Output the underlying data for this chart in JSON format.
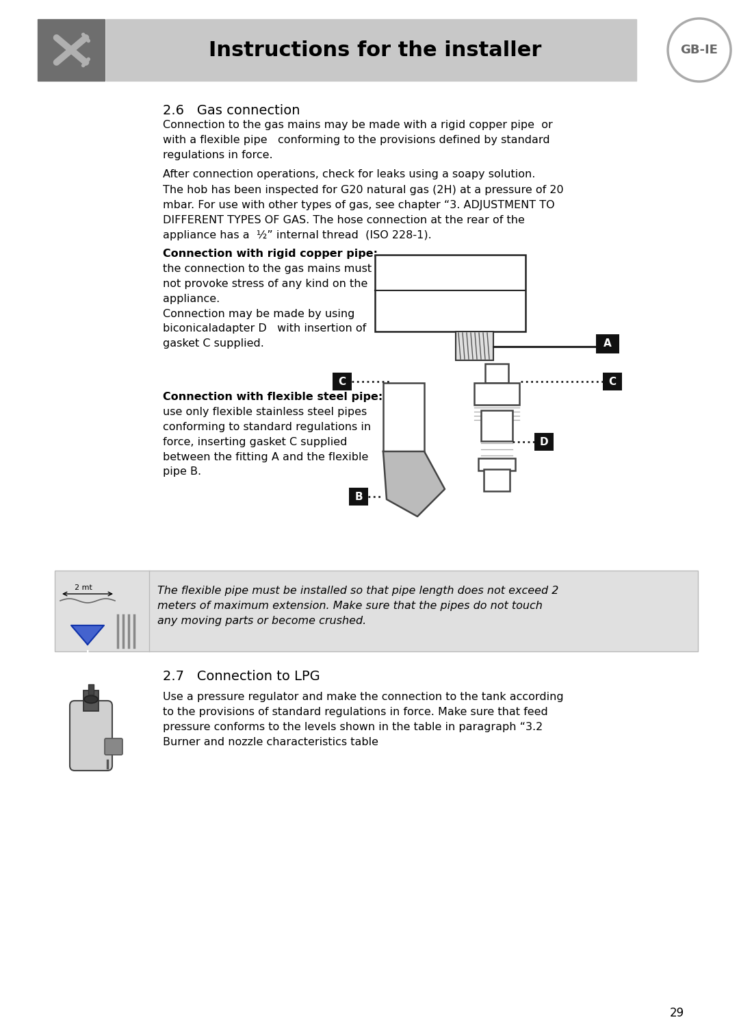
{
  "page_bg": "#ffffff",
  "header_bg": "#c8c8c8",
  "header_text": "Instructions for the installer",
  "header_text_color": "#000000",
  "icon_bg": "#6b6b6b",
  "gb_ie_text": "GB-IE",
  "section_26_title": "2.6   Gas connection",
  "para1": "Connection to the gas mains may be made with a rigid copper pipe  or\nwith a flexible pipe   conforming to the provisions defined by standard\nregulations in force.",
  "para2": "After connection operations, check for leaks using a soapy solution.",
  "para3": "The hob has been inspected for G20 natural gas (2H) at a pressure of 20\nmbar. For use with other types of gas, see chapter “3. ADJUSTMENT TO\nDIFFERENT TYPES OF GAS. The hose connection at the rear of the\nappliance has a  ½” internal thread  (ISO 228-1).",
  "rigid_title": "Connection with rigid copper pipe:",
  "rigid_body": "the connection to the gas mains must\nnot provoke stress of any kind on the\nappliance.\nConnection may be made by using\nbiconicaladapter D   with insertion of\ngasket C supplied.",
  "flex_title": "Connection with flexible steel pipe:",
  "flex_body": "use only flexible stainless steel pipes\nconforming to standard regulations in\nforce, inserting gasket C supplied\nbetween the fitting A and the flexible\npipe B.",
  "warning_bg": "#e0e0e0",
  "warning_text": "The flexible pipe must be installed so that pipe length does not exceed 2\nmeters of maximum extension. Make sure that the pipes do not touch\nany moving parts or become crushed.",
  "section_27_title": "2.7   Connection to LPG",
  "section_27_body": "Use a pressure regulator and make the connection to the tank according\nto the provisions of standard regulations in force. Make sure that feed\npressure conforms to the levels shown in the table in paragraph “3.2\nBurner and nozzle characteristics table",
  "page_number": "29"
}
